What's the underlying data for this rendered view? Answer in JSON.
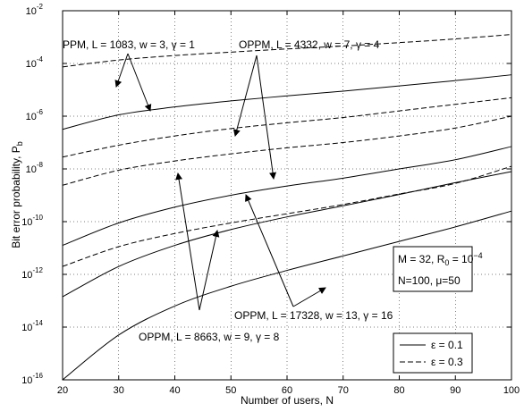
{
  "chart_data": {
    "type": "line",
    "xlabel": "Number of users, N",
    "ylabel": "Bit error probability, P",
    "ylabel_sub": "b",
    "xlim": [
      20,
      100
    ],
    "ylim_exponents": [
      -16,
      -2
    ],
    "y_scale": "log",
    "grid": true,
    "x_ticks": [
      20,
      30,
      40,
      50,
      60,
      70,
      80,
      90,
      100
    ],
    "y_tick_exponents": [
      -16,
      -14,
      -12,
      -10,
      -8,
      -6,
      -4,
      -2
    ],
    "y_tick_base": "10",
    "series": [
      {
        "curve": "PPM L=1083 eps=0.1",
        "style": "solid",
        "x": [
          20,
          30,
          40,
          50,
          60,
          70,
          80,
          90,
          100
        ],
        "log10_y": [
          -6.5,
          -5.95,
          -5.65,
          -5.42,
          -5.23,
          -5.05,
          -4.85,
          -4.65,
          -4.43
        ]
      },
      {
        "curve": "PPM L=1083 eps=0.3",
        "style": "dashed",
        "x": [
          20,
          30,
          40,
          50,
          60,
          70,
          80,
          90,
          100
        ],
        "log10_y": [
          -4.13,
          -3.87,
          -3.7,
          -3.57,
          -3.45,
          -3.34,
          -3.21,
          -3.07,
          -2.9
        ]
      },
      {
        "curve": "OPPM L=4332 eps=0.1",
        "style": "solid",
        "x": [
          20,
          30,
          40,
          50,
          60,
          70,
          80,
          90,
          100
        ],
        "log10_y": [
          -10.9,
          -10.05,
          -9.45,
          -9.0,
          -8.65,
          -8.35,
          -8.0,
          -7.65,
          -7.15
        ]
      },
      {
        "curve": "OPPM L=4332 eps=0.3",
        "style": "dashed",
        "x": [
          20,
          30,
          40,
          50,
          60,
          70,
          80,
          90,
          100
        ],
        "log10_y": [
          -7.55,
          -7.1,
          -6.75,
          -6.47,
          -6.25,
          -6.05,
          -5.8,
          -5.55,
          -5.3
        ]
      },
      {
        "curve": "OPPM L=8663 eps=0.1",
        "style": "solid",
        "x": [
          20,
          30,
          40,
          50,
          60,
          70,
          80,
          90,
          100
        ],
        "log10_y": [
          -12.85,
          -11.7,
          -10.9,
          -10.3,
          -9.82,
          -9.4,
          -8.97,
          -8.52,
          -8.1
        ]
      },
      {
        "curve": "OPPM L=8663 eps=0.3",
        "style": "dashed",
        "x": [
          20,
          30,
          40,
          50,
          60,
          70,
          80,
          90,
          100
        ],
        "log10_y": [
          -8.62,
          -8.05,
          -7.7,
          -7.43,
          -7.2,
          -7.0,
          -6.75,
          -6.45,
          -6.0
        ]
      },
      {
        "curve": "OPPM L=17328 eps=0.1",
        "style": "solid",
        "x": [
          20,
          30,
          40,
          50,
          60,
          70,
          80,
          90,
          100
        ],
        "log10_y": [
          -16.0,
          -14.3,
          -13.2,
          -12.45,
          -11.85,
          -11.3,
          -10.75,
          -10.2,
          -9.6
        ]
      },
      {
        "curve": "OPPM L=17328 eps=0.3",
        "style": "dashed",
        "x": [
          20,
          30,
          40,
          50,
          60,
          70,
          80,
          90,
          100
        ],
        "log10_y": [
          -11.7,
          -10.95,
          -10.45,
          -10.05,
          -9.7,
          -9.35,
          -8.95,
          -8.55,
          -7.9
        ]
      }
    ],
    "annotations": [
      {
        "text": "PPM, L = 1083, w = 3, γ = 1"
      },
      {
        "text": "OPPM, L = 4332, w = 7, γ = 4"
      },
      {
        "text": "OPPM, L = 17328, w = 13, γ = 16"
      },
      {
        "text": "OPPM, L = 8663, w = 9, γ = 8"
      }
    ],
    "param_box": {
      "line1_prefix": "M = 32, R",
      "line1_sub": "0",
      "line1_mid": " = 10",
      "line1_sup": "−4",
      "line2": "N=100, μ=50"
    },
    "legend": {
      "placement": "bottom-right",
      "entries": [
        {
          "label": "ε = 0.1",
          "style": "solid"
        },
        {
          "label": "ε = 0.3",
          "style": "dashed"
        }
      ]
    }
  }
}
